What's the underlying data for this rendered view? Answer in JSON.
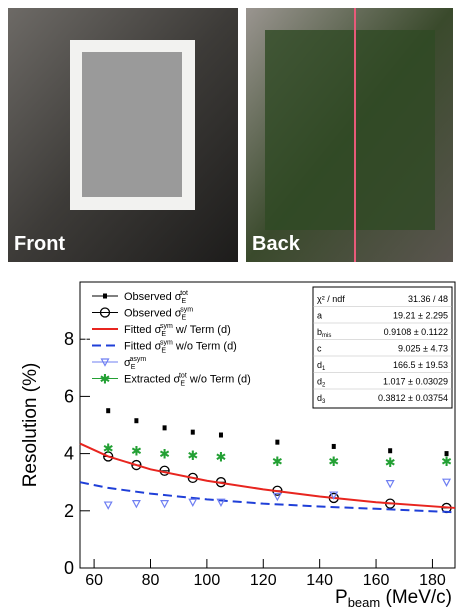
{
  "photos": [
    "Front",
    "Back"
  ],
  "chart_data": {
    "type": "scatter",
    "y_label": "Resolution (%)",
    "x_label": {
      "text": "P",
      "sub": "beam",
      "tail": " (MeV/c)"
    },
    "xlim": [
      55,
      188
    ],
    "xticks": [
      60,
      80,
      100,
      120,
      140,
      160,
      180
    ],
    "ylim": [
      0,
      10
    ],
    "yticks": [
      0,
      2,
      4,
      6,
      8
    ],
    "series": [
      {
        "name": {
          "text": "Observed σ",
          "sub": "E",
          "sup": "tot",
          "tail": ""
        },
        "style": "dot",
        "color": "#000000",
        "x": [
          65,
          75,
          85,
          95,
          105,
          125,
          145,
          165,
          185
        ],
        "values": [
          5.5,
          5.15,
          4.9,
          4.75,
          4.65,
          4.4,
          4.25,
          4.1,
          4.0
        ]
      },
      {
        "name": {
          "text": "Observed σ",
          "sub": "E",
          "sup": "sym",
          "tail": ""
        },
        "style": "circle",
        "color": "#000000",
        "x": [
          65,
          75,
          85,
          95,
          105,
          125,
          145,
          165,
          185
        ],
        "values": [
          3.9,
          3.6,
          3.4,
          3.15,
          3.0,
          2.7,
          2.45,
          2.25,
          2.1
        ]
      },
      {
        "name": {
          "text": "Fitted σ",
          "sub": "E",
          "sup": "sym",
          "tail": " w/ Term (d)"
        },
        "style": "line",
        "color": "#e8251f",
        "x": [
          55,
          65,
          80,
          100,
          120,
          140,
          160,
          188
        ],
        "values": [
          4.35,
          3.9,
          3.45,
          3.05,
          2.75,
          2.5,
          2.3,
          2.1
        ]
      },
      {
        "name": {
          "text": "Fitted σ",
          "sub": "E",
          "sup": "sym",
          "tail": " w/o Term (d)"
        },
        "style": "dashed",
        "color": "#1f3fd8",
        "x": [
          55,
          65,
          80,
          100,
          120,
          140,
          160,
          188
        ],
        "values": [
          3.0,
          2.8,
          2.6,
          2.4,
          2.25,
          2.15,
          2.07,
          1.95
        ]
      },
      {
        "name": {
          "text": "σ",
          "sub": "E",
          "sup": "asym",
          "tail": ""
        },
        "style": "triangle",
        "color": "#6f7ff2",
        "x": [
          65,
          75,
          85,
          95,
          105,
          125,
          145,
          165,
          185
        ],
        "values": [
          2.2,
          2.25,
          2.25,
          2.3,
          2.3,
          2.5,
          2.55,
          2.95,
          3.0
        ]
      },
      {
        "name": {
          "text": "Extracted σ",
          "sub": "E",
          "sup": "tot",
          "tail": " w/o Term (d)"
        },
        "style": "star",
        "color": "#23a034",
        "x": [
          65,
          75,
          85,
          95,
          105,
          125,
          145,
          165,
          185
        ],
        "values": [
          4.2,
          4.1,
          4.0,
          3.95,
          3.9,
          3.75,
          3.75,
          3.7,
          3.75
        ]
      }
    ],
    "stats": [
      {
        "name": "χ² / ndf",
        "sub": "",
        "value": "31.36 / 48"
      },
      {
        "name": "a",
        "sub": "",
        "value": "19.21 ± 2.295"
      },
      {
        "name": "b",
        "sub": "mis",
        "value": "0.9108 ± 0.1122"
      },
      {
        "name": "c",
        "sub": "",
        "value": "9.025 ± 4.73"
      },
      {
        "name": "d",
        "sub": "1",
        "value": "166.5 ± 19.53"
      },
      {
        "name": "d",
        "sub": "2",
        "value": "1.017 ± 0.03029"
      },
      {
        "name": "d",
        "sub": "3",
        "value": "0.3812 ± 0.03754"
      }
    ]
  }
}
